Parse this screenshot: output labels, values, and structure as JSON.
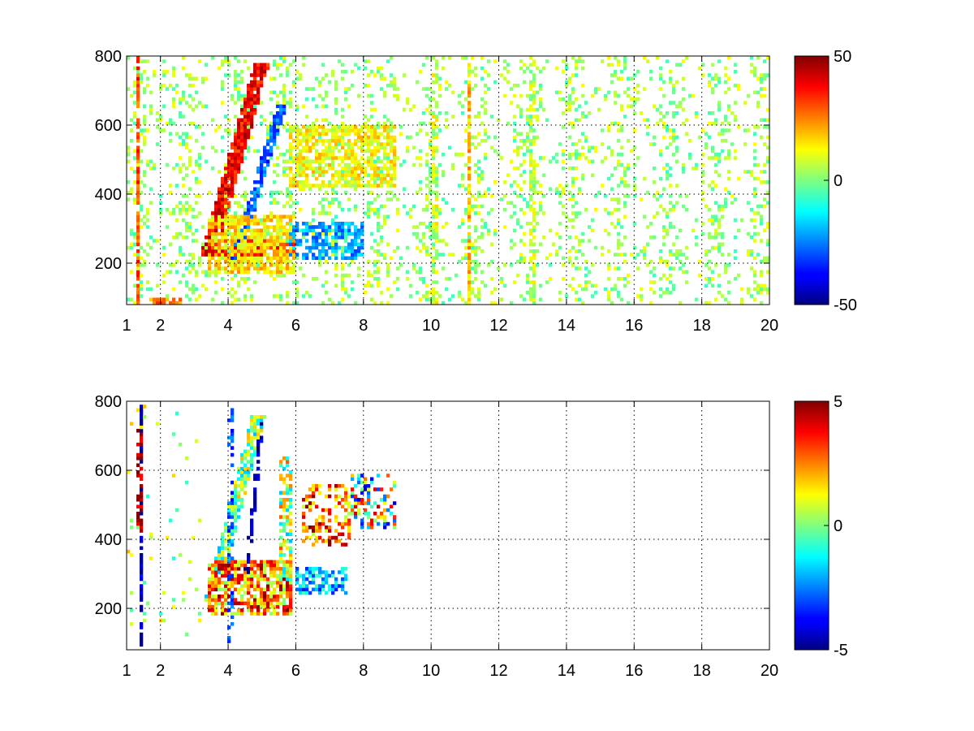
{
  "figure": {
    "colormap": "jet",
    "background": "#ffffff",
    "panels": 2
  },
  "chart_data": [
    {
      "type": "heatmap",
      "title": "",
      "xlabel": "",
      "ylabel": "",
      "xlim": [
        1,
        20
      ],
      "ylim": [
        80,
        800
      ],
      "x_ticks": [
        1,
        2,
        4,
        6,
        8,
        10,
        12,
        14,
        16,
        18,
        20
      ],
      "x_tick_labels": [
        "1",
        "2",
        "4",
        "6",
        "8",
        "10",
        "12",
        "14",
        "16",
        "18",
        "20"
      ],
      "y_ticks": [
        200,
        400,
        600,
        800
      ],
      "y_tick_labels": [
        "200",
        "400",
        "600",
        "800"
      ],
      "grid": true,
      "colorbar": {
        "clim": [
          -50,
          50
        ],
        "ticks": [
          -50,
          0,
          50
        ],
        "tick_labels": [
          "-50",
          "0",
          "50"
        ],
        "colormap": "jet"
      },
      "background_noise": {
        "x_range": [
          1,
          20
        ],
        "density": 0.2,
        "amplitude": 10
      },
      "features": [
        {
          "shape": "diagonal_band",
          "from": [
            3.4,
            220
          ],
          "to": [
            5.0,
            780
          ],
          "width": 0.45,
          "value": 38,
          "density": 0.92
        },
        {
          "shape": "diagonal_band",
          "from": [
            4.2,
            210
          ],
          "to": [
            5.6,
            660
          ],
          "width": 0.28,
          "value": -28,
          "density": 0.85
        },
        {
          "shape": "horizontal_band",
          "x": [
            3.6,
            6.0
          ],
          "y": [
            225,
            265
          ],
          "value": 35,
          "density": 0.8
        },
        {
          "shape": "patch",
          "x": [
            3.4,
            6.0
          ],
          "y": [
            170,
            340
          ],
          "value": 15,
          "density": 0.7
        },
        {
          "shape": "patch",
          "x": [
            5.8,
            9.0
          ],
          "y": [
            420,
            600
          ],
          "value": 12,
          "density": 0.65
        },
        {
          "shape": "patch",
          "x": [
            5.8,
            8.0
          ],
          "y": [
            210,
            320
          ],
          "value": -22,
          "density": 0.6
        },
        {
          "shape": "vertical_line",
          "x": 1.35,
          "y": [
            80,
            800
          ],
          "value": 30,
          "density": 0.85
        },
        {
          "shape": "vertical_line",
          "x": 11.1,
          "y": [
            80,
            800
          ],
          "value": 18,
          "density": 0.75
        },
        {
          "shape": "vertical_line",
          "x": 13.0,
          "y": [
            80,
            800
          ],
          "value": 6,
          "density": 0.55
        },
        {
          "shape": "vertical_line",
          "x": 10.1,
          "y": [
            80,
            800
          ],
          "value": 8,
          "density": 0.5
        },
        {
          "shape": "horizontal_band",
          "x": [
            1.7,
            2.6
          ],
          "y": [
            80,
            100
          ],
          "value": 25,
          "density": 0.7
        }
      ]
    },
    {
      "type": "heatmap",
      "title": "",
      "xlabel": "",
      "ylabel": "",
      "xlim": [
        1,
        20
      ],
      "ylim": [
        80,
        800
      ],
      "x_ticks": [
        1,
        2,
        4,
        6,
        8,
        10,
        12,
        14,
        16,
        18,
        20
      ],
      "x_tick_labels": [
        "1",
        "2",
        "4",
        "6",
        "8",
        "10",
        "12",
        "14",
        "16",
        "18",
        "20"
      ],
      "y_ticks": [
        200,
        400,
        600,
        800
      ],
      "y_tick_labels": [
        "200",
        "400",
        "600",
        "800"
      ],
      "grid": true,
      "colorbar": {
        "clim": [
          -5,
          5
        ],
        "ticks": [
          -5,
          0,
          5
        ],
        "tick_labels": [
          "-5",
          "0",
          "5"
        ],
        "colormap": "jet"
      },
      "background_noise": {
        "x_range": [
          1,
          3.2
        ],
        "density": 0.03,
        "amplitude": 1.5
      },
      "features": [
        {
          "shape": "diagonal_band",
          "from": [
            3.5,
            220
          ],
          "to": [
            4.9,
            760
          ],
          "width": 0.4,
          "value": 0,
          "spread": 2.0,
          "density": 0.75
        },
        {
          "shape": "diagonal_band",
          "from": [
            4.5,
            260
          ],
          "to": [
            5.0,
            740
          ],
          "width": 0.12,
          "value": -4.5,
          "density": 0.8
        },
        {
          "shape": "patch",
          "x": [
            3.4,
            5.9
          ],
          "y": [
            180,
            340
          ],
          "value": 2.5,
          "spread": 2.5,
          "density": 0.75
        },
        {
          "shape": "patch",
          "x": [
            5.5,
            5.9
          ],
          "y": [
            280,
            640
          ],
          "value": 0.5,
          "spread": 2.5,
          "density": 0.55
        },
        {
          "shape": "patch",
          "x": [
            6.2,
            7.6
          ],
          "y": [
            380,
            560
          ],
          "value": 2.8,
          "spread": 2.5,
          "density": 0.45
        },
        {
          "shape": "patch",
          "x": [
            7.6,
            9.0
          ],
          "y": [
            430,
            590
          ],
          "value": 0,
          "spread": 4.5,
          "density": 0.45
        },
        {
          "shape": "patch",
          "x": [
            6.0,
            7.5
          ],
          "y": [
            240,
            320
          ],
          "value": -2.0,
          "spread": 1.5,
          "density": 0.55
        },
        {
          "shape": "vertical_line",
          "x": 1.45,
          "y": [
            80,
            800
          ],
          "value": -4.5,
          "density": 0.7
        },
        {
          "shape": "vertical_line",
          "x": 1.4,
          "y": [
            420,
            720
          ],
          "value": 4.5,
          "density": 0.6
        },
        {
          "shape": "vertical_line",
          "x": 4.05,
          "y": [
            80,
            780
          ],
          "value": -3.0,
          "density": 0.3
        }
      ]
    }
  ]
}
